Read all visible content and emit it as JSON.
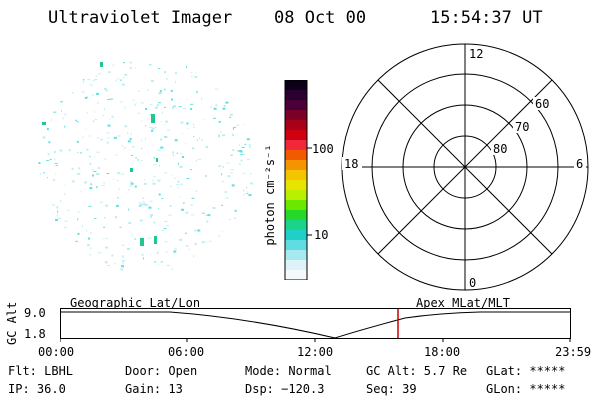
{
  "header": {
    "instrument": "Ultraviolet Imager",
    "date": "08 Oct 00",
    "time": "15:54:37 UT"
  },
  "colorbar": {
    "label": "photon cm⁻²s⁻¹",
    "tick_100": "100",
    "tick_10": "10",
    "colors_top_to_bottom": [
      "#0b0018",
      "#2a0030",
      "#4a0036",
      "#7a0028",
      "#a80018",
      "#d00010",
      "#f0283a",
      "#f25a00",
      "#f59400",
      "#f5c400",
      "#e8e400",
      "#b9f000",
      "#6ce800",
      "#25d82a",
      "#1cd38c",
      "#20cfc8",
      "#5fdde0",
      "#a6eaf0",
      "#dcf4f8",
      "#f4fafc"
    ]
  },
  "polar": {
    "label_12": "12",
    "label_18": "18",
    "label_6": "6",
    "label_0": "0",
    "label_60": "60",
    "label_70": "70",
    "label_80": "80"
  },
  "timeline": {
    "left_caption": "Geographic Lat/Lon",
    "right_caption": "Apex MLat/MLT",
    "y_axis_label": "GC Alt",
    "y_max": "9.0",
    "y_min": "1.8",
    "x_ticks": [
      "00:00",
      "06:00",
      "12:00",
      "18:00",
      "23:59"
    ],
    "marker_color": "#cc0000"
  },
  "info": {
    "filter": "Flt: LBHL",
    "ip": "IP: 36.0",
    "door": "Door: Open",
    "gain": "Gain: 13",
    "mode": "Mode: Normal",
    "dsp": "Dsp: −120.3",
    "gc_alt": "GC Alt: 5.7 Re",
    "seq": "Seq: 39",
    "glat": "GLat: *****",
    "glon": "GLon: *****"
  },
  "colors": {
    "speckle": "#5fe0e0",
    "speckle_light": "#bfeef2",
    "bright_spot": "#20c890"
  }
}
